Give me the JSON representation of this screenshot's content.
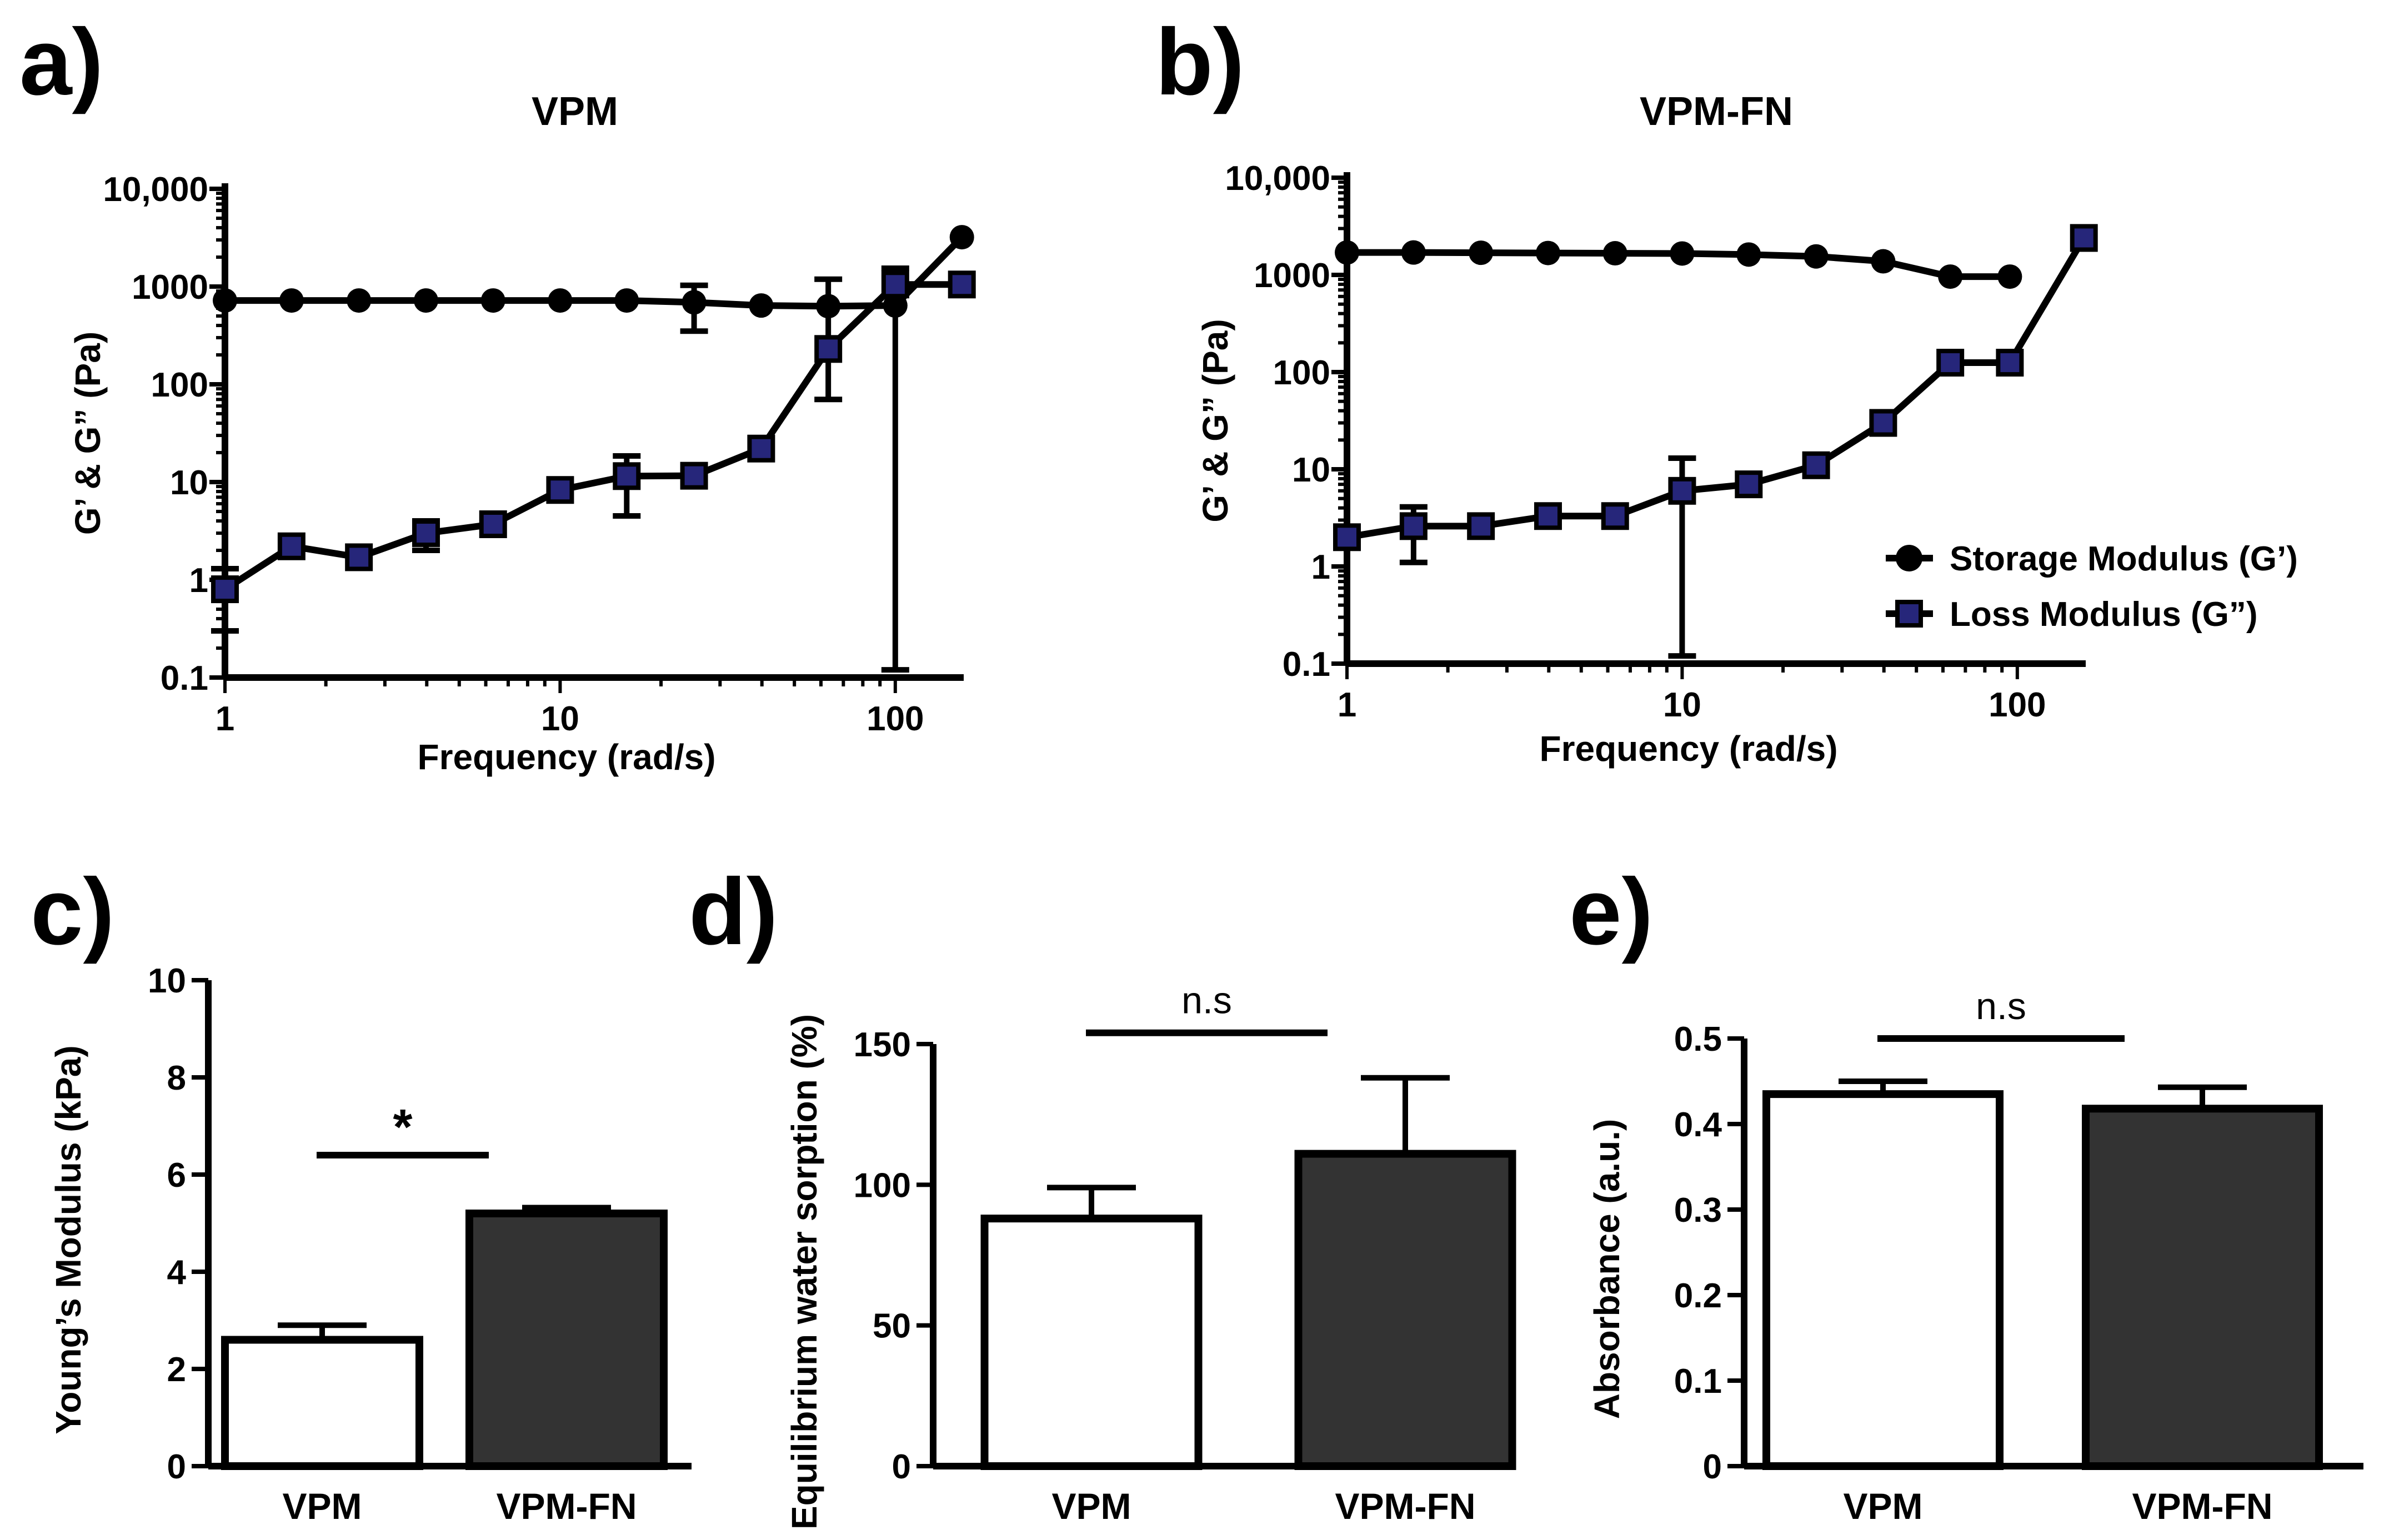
{
  "chart_data": [
    {
      "panel_label": "a)",
      "type": "line",
      "title": "VPM",
      "xlabel": "Frequency (rad/s)",
      "ylabel": "G’ & G” (Pa)",
      "xscale": "log",
      "yscale": "log",
      "xlim": [
        1,
        160
      ],
      "ylim": [
        0.1,
        10000
      ],
      "xticks": [
        1,
        10,
        100
      ],
      "xtick_labels": [
        "1",
        "10",
        "100"
      ],
      "yticks": [
        0.1,
        1,
        10,
        100,
        1000,
        10000
      ],
      "ytick_labels": [
        "0.1",
        "1",
        "10",
        "100",
        "1000",
        "10,000"
      ],
      "series": [
        {
          "name": "Storage Modulus (G’)",
          "marker": "circle",
          "color": "#000000",
          "x": [
            1,
            1.58,
            2.51,
            3.98,
            6.31,
            10,
            15.8,
            25.1,
            39.8,
            63.1,
            100,
            158
          ],
          "y": [
            720,
            720,
            720,
            720,
            720,
            720,
            720,
            690,
            640,
            630,
            640,
            3200
          ],
          "err": [
            0,
            0,
            0,
            0,
            0,
            0,
            0,
            340,
            0,
            560,
            900,
            0
          ]
        },
        {
          "name": "Loss Modulus (G”)",
          "marker": "square",
          "color": "#26267a",
          "x": [
            1,
            1.58,
            2.51,
            3.98,
            6.31,
            10,
            15.8,
            25.1,
            39.8,
            63.1,
            100,
            158
          ],
          "y": [
            0.8,
            2.2,
            1.7,
            3.0,
            3.7,
            8.3,
            11.5,
            11.6,
            22,
            230,
            1050,
            1050
          ],
          "err": [
            0.5,
            0,
            0,
            1.0,
            0,
            0,
            7,
            0,
            0,
            0,
            0,
            0
          ]
        }
      ]
    },
    {
      "panel_label": "b)",
      "type": "line",
      "title": "VPM-FN",
      "xlabel": "Frequency (rad/s)",
      "ylabel": "G’ & G” (Pa)",
      "xscale": "log",
      "yscale": "log",
      "xlim": [
        1,
        160
      ],
      "ylim": [
        0.1,
        10000
      ],
      "xticks": [
        1,
        10,
        100
      ],
      "xtick_labels": [
        "1",
        "10",
        "100"
      ],
      "yticks": [
        0.1,
        1,
        10,
        100,
        1000,
        10000
      ],
      "ytick_labels": [
        "0.1",
        "1",
        "10",
        "100",
        "1000",
        "10,000"
      ],
      "legend": "right",
      "series": [
        {
          "name": "Storage Modulus (G’)",
          "marker": "circle",
          "color": "#000000",
          "x": [
            1,
            1.58,
            2.51,
            3.98,
            6.31,
            10,
            15.8,
            25.1,
            39.8,
            63.1,
            95
          ],
          "y": [
            1700,
            1700,
            1690,
            1680,
            1670,
            1660,
            1620,
            1550,
            1380,
            960,
            960
          ],
          "err": [
            0,
            0,
            0,
            0,
            0,
            0,
            0,
            0,
            0,
            0,
            0
          ]
        },
        {
          "name": "Loss Modulus (G”)",
          "marker": "square",
          "color": "#26267a",
          "x": [
            1,
            1.58,
            2.51,
            3.98,
            6.31,
            10,
            15.8,
            25.1,
            39.8,
            63.1,
            95,
            158
          ],
          "y": [
            2.0,
            2.6,
            2.6,
            3.3,
            3.3,
            6.0,
            7.0,
            11.0,
            30,
            125,
            125,
            2400
          ],
          "err": [
            0,
            1.5,
            0,
            0,
            0,
            7,
            0,
            0,
            0,
            0,
            0,
            0
          ]
        }
      ]
    },
    {
      "panel_label": "c)",
      "type": "bar",
      "title": "",
      "categories": [
        "VPM",
        "VPM-FN"
      ],
      "values": [
        2.6,
        5.2
      ],
      "errors": [
        0.3,
        0.12
      ],
      "bar_colors": [
        "#ffffff",
        "#333333"
      ],
      "xlabel": "",
      "ylabel": "Young’s Modulus (kPa)",
      "ylim": [
        0,
        10
      ],
      "yticks": [
        0,
        2,
        4,
        6,
        8,
        10
      ],
      "ytick_labels": [
        "0",
        "2",
        "4",
        "6",
        "8",
        "10"
      ],
      "significance": {
        "label": "*",
        "bar_value": 6.4
      }
    },
    {
      "panel_label": "d)",
      "type": "bar",
      "title": "",
      "categories": [
        "VPM",
        "VPM-FN"
      ],
      "values": [
        88,
        111
      ],
      "errors": [
        11,
        27
      ],
      "bar_colors": [
        "#ffffff",
        "#333333"
      ],
      "xlabel": "",
      "ylabel": "Equilibrium water sorption (%)",
      "ylim": [
        0,
        150
      ],
      "yticks": [
        0,
        50,
        100,
        150
      ],
      "ytick_labels": [
        "0",
        "50",
        "100",
        "150"
      ],
      "significance": {
        "label": "n.s",
        "bar_value": 154
      }
    },
    {
      "panel_label": "e)",
      "type": "bar",
      "title": "",
      "categories": [
        "VPM",
        "VPM-FN"
      ],
      "values": [
        0.435,
        0.418
      ],
      "errors": [
        0.015,
        0.025
      ],
      "bar_colors": [
        "#ffffff",
        "#333333"
      ],
      "xlabel": "",
      "ylabel": "Absorbance (a.u.)",
      "ylim": [
        0,
        0.5
      ],
      "yticks": [
        0,
        0.1,
        0.2,
        0.3,
        0.4,
        0.5
      ],
      "ytick_labels": [
        "0",
        "0.1",
        "0.2",
        "0.3",
        "0.4",
        "0.5"
      ],
      "significance": {
        "label": "n.s",
        "bar_value": 0.5
      }
    }
  ]
}
